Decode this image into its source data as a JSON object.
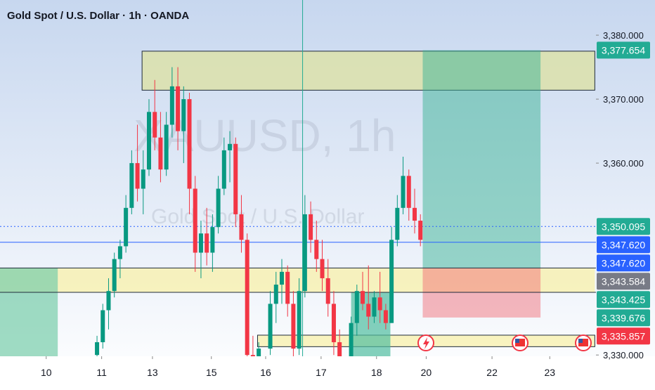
{
  "chart_data": {
    "type": "candlestick",
    "title": "Gold Spot / U.S. Dollar · 1h · OANDA",
    "watermark": "XAUUSD, 1h",
    "watermark_subtitle": "Gold Spot / U.S. Dollar",
    "up_color": "#089981",
    "down_color": "#f23645",
    "x": [
      42,
      44.5,
      47,
      49.5,
      52,
      54.5,
      57,
      59.5,
      62,
      64.5,
      67,
      69.5,
      72,
      74.5,
      77,
      79.5,
      82,
      84.5,
      87,
      89.5,
      92,
      94.5,
      97,
      99.5,
      102,
      104.5,
      107,
      109.5,
      112,
      117,
      119.5,
      122,
      124.5,
      127,
      129.5,
      132,
      134.5,
      137,
      139.5,
      142,
      144.5,
      147,
      152,
      154.5,
      157,
      159.5,
      162,
      164.5,
      167,
      169.5,
      172,
      174.5,
      177,
      179.5,
      182
    ],
    "open": [
      3330,
      3332,
      3337,
      3340,
      3345,
      3347,
      3353,
      3360,
      3356,
      3359,
      3368,
      3364,
      3359,
      3366,
      3372,
      3365,
      3370,
      3356,
      3346,
      3349,
      3346,
      3350,
      3356,
      3362,
      3363,
      3352,
      3348,
      3330,
      3328,
      3331,
      3338,
      3341,
      3343,
      3338,
      3331,
      3340,
      3352,
      3348,
      3345,
      3342,
      3338,
      3332,
      3328,
      3335,
      3340,
      3338,
      3336,
      3339,
      3337,
      3335,
      3348,
      3353,
      3358,
      3353,
      3351
    ],
    "high": [
      3333,
      3338,
      3342,
      3346,
      3348,
      3355,
      3362,
      3366,
      3362,
      3370,
      3373,
      3368,
      3368,
      3375,
      3375,
      3372,
      3371,
      3358,
      3351,
      3353,
      3352,
      3358,
      3364,
      3365,
      3364,
      3355,
      3349,
      3333,
      3332,
      3340,
      3343,
      3345,
      3344,
      3340,
      3342,
      3355,
      3354,
      3351,
      3348,
      3345,
      3340,
      3334,
      3336,
      3341,
      3343,
      3344,
      3340,
      3343,
      3338,
      3350,
      3355,
      3361,
      3359,
      3356,
      3352
    ],
    "low": [
      3329,
      3331,
      3334,
      3339,
      3342,
      3346,
      3352,
      3354,
      3352,
      3358,
      3362,
      3357,
      3358,
      3364,
      3362,
      3360,
      3352,
      3343,
      3342,
      3344,
      3343,
      3349,
      3355,
      3357,
      3350,
      3346,
      3326,
      3325,
      3324,
      3330,
      3335,
      3338,
      3336,
      3328,
      3330,
      3339,
      3346,
      3343,
      3340,
      3336,
      3330,
      3326,
      3327,
      3333,
      3337,
      3334,
      3335,
      3335,
      3334,
      3335,
      3347,
      3352,
      3351,
      3349,
      3347
    ],
    "close": [
      3332,
      3337,
      3340,
      3345,
      3347,
      3353,
      3360,
      3356,
      3359,
      3368,
      3364,
      3359,
      3366,
      3372,
      3365,
      3370,
      3356,
      3346,
      3349,
      3346,
      3350,
      3356,
      3362,
      3363,
      3352,
      3348,
      3330,
      3328,
      3331,
      3338,
      3341,
      3343,
      3338,
      3331,
      3340,
      3352,
      3348,
      3345,
      3342,
      3338,
      3332,
      3328,
      3335,
      3340,
      3338,
      3336,
      3339,
      3337,
      3335,
      3348,
      3353,
      3358,
      3353,
      3351,
      3348
    ],
    "xlim": [
      0,
      258
    ],
    "xticks": [
      {
        "value": 20,
        "label": "10"
      },
      {
        "value": 44,
        "label": "11"
      },
      {
        "value": 66,
        "label": "13"
      },
      {
        "value": 91.5,
        "label": "15"
      },
      {
        "value": 115,
        "label": "16"
      },
      {
        "value": 139,
        "label": "17"
      },
      {
        "value": 163,
        "label": "18"
      },
      {
        "value": 184.5,
        "label": "20"
      },
      {
        "value": 213,
        "label": "22"
      },
      {
        "value": 238,
        "label": "23"
      }
    ],
    "ylim": [
      3329.8,
      3385.5
    ],
    "yticks": [
      {
        "value": 3330,
        "label": "3,330.000"
      },
      {
        "value": 3360,
        "label": "3,360.000"
      },
      {
        "value": 3370,
        "label": "3,370.000"
      },
      {
        "value": 3380,
        "label": "3,380.000"
      }
    ],
    "zones": [
      {
        "x": [
          61.5,
          257.5
        ],
        "y": [
          3377.5,
          3371.4
        ],
        "color": "rgba(222,226,160,0.75)"
      },
      {
        "x": [
          0,
          257.5
        ],
        "y": [
          3343.6,
          3339.8
        ],
        "color": "rgba(248,240,170,0.75)"
      },
      {
        "x": [
          111.5,
          257.5
        ],
        "y": [
          3333.1,
          3331.3
        ],
        "color": "rgba(248,240,170,0.75)"
      },
      {
        "x": [
          0,
          25
        ],
        "y": [
          3343.6,
          3329.8
        ],
        "color": "rgba(120,205,170,0.7)"
      },
      {
        "x": [
          152,
          169
        ],
        "y": [
          3339.8,
          3329.8
        ],
        "color": "rgba(80,190,160,0.7)"
      },
      {
        "x": [
          183,
          234
        ],
        "y": [
          3377.654,
          3343.584
        ],
        "color": "rgba(60,180,150,0.5)"
      },
      {
        "x": [
          183,
          234
        ],
        "y": [
          3343.584,
          3335.857
        ],
        "color": "rgba(242,100,110,0.45)"
      }
    ],
    "lines": [
      {
        "value": 3347.62,
        "color": "#2962ff",
        "dash": false
      },
      {
        "value": 3350.095,
        "color": "#2962ff",
        "dash": true
      },
      {
        "value": 3343.6,
        "color": "#1e2a3a",
        "dash": false
      },
      {
        "value": 3339.8,
        "color": "#1e2a3a",
        "dash": false
      }
    ],
    "vline": 131,
    "price_labels": [
      {
        "value": 3377.654,
        "label": "3,377.654",
        "color": "#22ab94"
      },
      {
        "value": 3350.095,
        "label": "3,350.095",
        "color": "#22ab94"
      },
      {
        "value": 3347.62,
        "label": "3,347.620",
        "color": "#2962ff"
      },
      {
        "value": 3347.62,
        "label": "3,347.620",
        "color": "#2962ff"
      },
      {
        "value": 3343.584,
        "label": "3,343.584",
        "color": "#787b86"
      },
      {
        "value": 3343.425,
        "label": "3,343.425",
        "color": "#22ab94"
      },
      {
        "value": 3339.676,
        "label": "3,339.676",
        "color": "#22ab94"
      },
      {
        "value": 3335.857,
        "label": "3,335.857",
        "color": "#f23645"
      }
    ]
  }
}
